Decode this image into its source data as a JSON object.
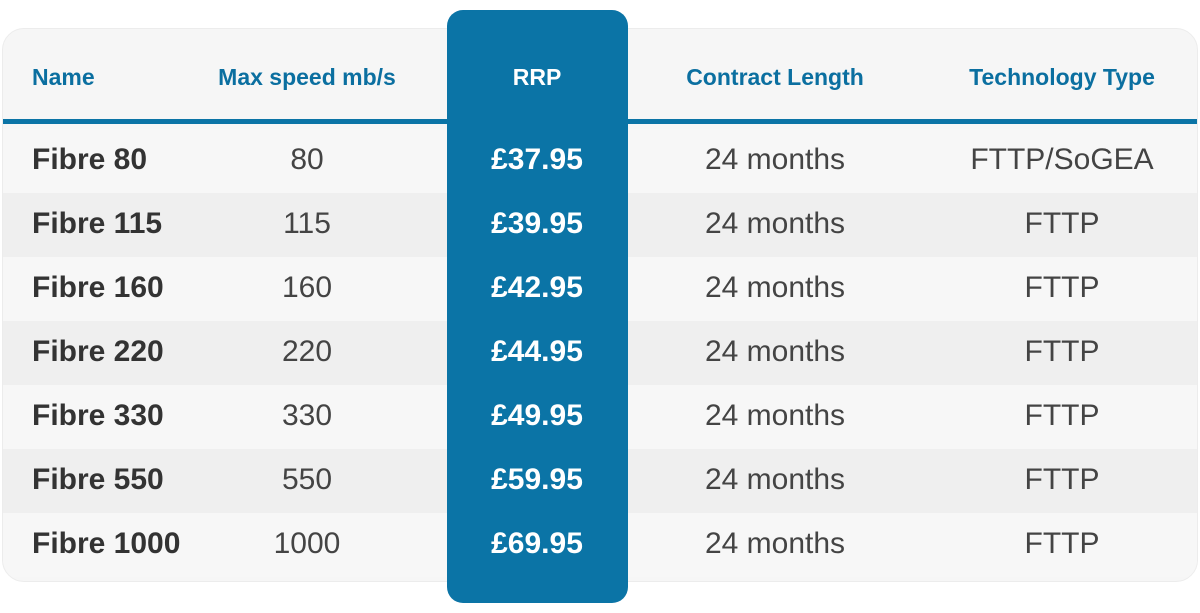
{
  "table": {
    "header": [
      "Name",
      "Max speed mb/s",
      "RRP",
      "Contract Length",
      "Technology Type"
    ],
    "rows": [
      [
        "Fibre 80",
        "80",
        "£37.95",
        "24 months",
        "FTTP/SoGEA"
      ],
      [
        "Fibre 115",
        "115",
        "£39.95",
        "24 months",
        "FTTP"
      ],
      [
        "Fibre 160",
        "160",
        "£42.95",
        "24 months",
        "FTTP"
      ],
      [
        "Fibre 220",
        "220",
        "£44.95",
        "24 months",
        "FTTP"
      ],
      [
        "Fibre 330",
        "330",
        "£49.95",
        "24 months",
        "FTTP"
      ],
      [
        "Fibre 550",
        "550",
        "£59.95",
        "24 months",
        "FTTP"
      ],
      [
        "Fibre 1000",
        "1000",
        "£69.95",
        "24 months",
        "FTTP"
      ]
    ]
  }
}
